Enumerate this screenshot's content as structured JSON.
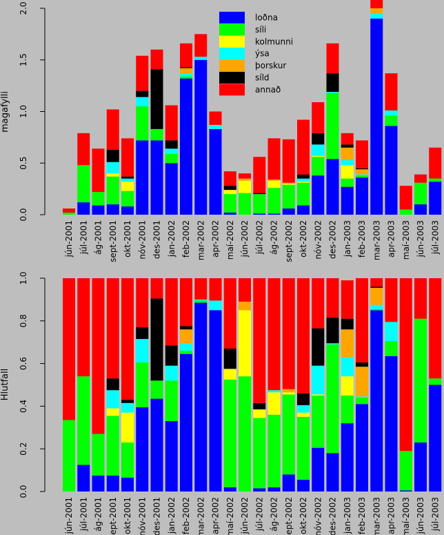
{
  "chart_data": [
    {
      "type": "bar",
      "stacked": true,
      "ylabel": "magafylli",
      "xlabel": "",
      "ylim": [
        0,
        2.0
      ],
      "yticks": [
        0.0,
        0.5,
        1.0,
        1.5,
        2.0
      ],
      "ytick_labels": [
        "0.0",
        "0.5",
        "1.0",
        "1.5",
        "2.0"
      ],
      "legend_position": "top-center",
      "categories": [
        "jún-2001",
        "júl-2001",
        "ág-2001",
        "sept-2001",
        "okt-2001",
        "nóv-2001",
        "des-2001",
        "jan-2002",
        "feb-2002",
        "mar-2002",
        "apr-2002",
        "maí-2002",
        "jún-2002",
        "júl-2002",
        "ág-2002",
        "sept-2002",
        "okt-2002",
        "nóv-2002",
        "des-2002",
        "jan-2003",
        "feb-2003",
        "mar-2003",
        "apr-2003",
        "maí-2003",
        "jún-2003",
        "júl-2003"
      ],
      "series": [
        {
          "name": "loðna",
          "color": "#0000ff",
          "values": [
            0,
            0.12,
            0.09,
            0.1,
            0.08,
            0.72,
            0.72,
            0.5,
            1.32,
            1.5,
            0.83,
            0.02,
            0,
            0.01,
            0.01,
            0.06,
            0.09,
            0.38,
            0.54,
            0.27,
            0.36,
            1.9,
            0.86,
            0,
            0.1,
            0.32
          ]
        },
        {
          "name": "síli",
          "color": "#00ff00",
          "values": [
            0.02,
            0.36,
            0.13,
            0.27,
            0.15,
            0.33,
            0.11,
            0.09,
            0.02,
            0,
            0,
            0.18,
            0.21,
            0.19,
            0.25,
            0.23,
            0.22,
            0.18,
            0.64,
            0.08,
            0.02,
            0,
            0.1,
            0.05,
            0.21,
            0.03
          ]
        },
        {
          "name": "kolmunni",
          "color": "#ffff00",
          "values": [
            0,
            0,
            0,
            0.03,
            0.09,
            0,
            0,
            0,
            0,
            0,
            0,
            0.04,
            0.12,
            0,
            0.07,
            0.01,
            0.01,
            0.01,
            0,
            0.13,
            0,
            0,
            0,
            0,
            0,
            0
          ]
        },
        {
          "name": "ýsa",
          "color": "#00ffff",
          "values": [
            0,
            0,
            0,
            0.11,
            0.03,
            0.09,
            0,
            0.05,
            0.03,
            0.03,
            0.04,
            0,
            0,
            0,
            0,
            0,
            0.03,
            0.11,
            0.01,
            0.05,
            0.01,
            0.05,
            0.05,
            0,
            0,
            0
          ]
        },
        {
          "name": "þorskur",
          "color": "#ffa500",
          "values": [
            0,
            0,
            0,
            0,
            0,
            0,
            0,
            0,
            0.05,
            0,
            0,
            0,
            0.02,
            0,
            0.01,
            0.01,
            0,
            0,
            0,
            0.12,
            0.05,
            0.05,
            0,
            0,
            0,
            0
          ]
        },
        {
          "name": "síld",
          "color": "#000000",
          "values": [
            0,
            0,
            0,
            0.12,
            0.02,
            0.06,
            0.58,
            0.08,
            0.01,
            0,
            0,
            0.04,
            0,
            0.01,
            0,
            0,
            0.04,
            0.11,
            0.18,
            0.03,
            0.01,
            0,
            0,
            0,
            0,
            0
          ]
        },
        {
          "name": "annað",
          "color": "#ff0000",
          "values": [
            0.04,
            0.31,
            0.42,
            0.39,
            0.37,
            0.34,
            0.19,
            0.34,
            0.23,
            0.22,
            0.13,
            0.14,
            0.05,
            0.35,
            0.4,
            0.42,
            0.53,
            0.3,
            0.29,
            0.11,
            0.27,
            0.1,
            0.36,
            0.23,
            0.08,
            0.3
          ]
        }
      ]
    },
    {
      "type": "bar",
      "stacked": true,
      "ylabel": "Hlutfall",
      "xlabel": "",
      "ylim": [
        0,
        1.0
      ],
      "yticks": [
        0.0,
        0.2,
        0.4,
        0.6,
        0.8,
        1.0
      ],
      "ytick_labels": [
        "0.0",
        "0.2",
        "0.4",
        "0.6",
        "0.8",
        "1.0"
      ],
      "categories": [
        "jún-2001",
        "júl-2001",
        "ág-2001",
        "sept-2001",
        "okt-2001",
        "nóv-2001",
        "des-2001",
        "jan-2002",
        "feb-2002",
        "mar-2002",
        "apr-2002",
        "maí-2002",
        "jún-2002",
        "júl-2002",
        "ág-2002",
        "sept-2002",
        "okt-2002",
        "nóv-2002",
        "des-2002",
        "jan-2003",
        "feb-2003",
        "mar-2003",
        "apr-2003",
        "maí-2003",
        "jún-2003",
        "júl-2003"
      ],
      "series": [
        {
          "name": "loðna",
          "color": "#0000ff",
          "values": [
            0,
            0.125,
            0.075,
            0.075,
            0.065,
            0.395,
            0.435,
            0.33,
            0.645,
            0.885,
            0.85,
            0.02,
            0,
            0.015,
            0.02,
            0.08,
            0.055,
            0.205,
            0.18,
            0.32,
            0.41,
            0.85,
            0.635,
            0.005,
            0.23,
            0.5
          ]
        },
        {
          "name": "síli",
          "color": "#00ff00",
          "values": [
            0.335,
            0.415,
            0.195,
            0.28,
            0.165,
            0.21,
            0.085,
            0.19,
            0.015,
            0.01,
            0,
            0.505,
            0.54,
            0.33,
            0.34,
            0.375,
            0.295,
            0.245,
            0.51,
            0.13,
            0.03,
            0.005,
            0.07,
            0.185,
            0.58,
            0.03
          ]
        },
        {
          "name": "kolmunni",
          "color": "#ffff00",
          "values": [
            0,
            0,
            0,
            0.035,
            0.14,
            0,
            0,
            0,
            0,
            0,
            0,
            0.05,
            0.31,
            0.04,
            0.105,
            0.01,
            0.02,
            0.005,
            0,
            0.09,
            0,
            0,
            0,
            0,
            0,
            0
          ]
        },
        {
          "name": "ýsa",
          "color": "#00ffff",
          "values": [
            0,
            0,
            0,
            0.085,
            0.045,
            0.11,
            0,
            0.07,
            0.035,
            0.005,
            0.045,
            0,
            0,
            0,
            0.01,
            0,
            0.035,
            0.135,
            0.005,
            0.09,
            0.005,
            0.02,
            0.09,
            0,
            0,
            0
          ]
        },
        {
          "name": "þorskur",
          "color": "#ffa500",
          "values": [
            0,
            0,
            0,
            0,
            0,
            0,
            0,
            0,
            0.065,
            0,
            0,
            0,
            0.04,
            0,
            0,
            0.015,
            0,
            0,
            0,
            0.13,
            0.14,
            0.08,
            0,
            0,
            0,
            0
          ]
        },
        {
          "name": "síld",
          "color": "#000000",
          "values": [
            0,
            0,
            0,
            0.055,
            0.015,
            0.055,
            0.385,
            0.095,
            0.015,
            0,
            0,
            0.095,
            0,
            0.03,
            0,
            0,
            0.055,
            0.175,
            0.12,
            0.05,
            0.02,
            0.005,
            0,
            0,
            0,
            0
          ]
        },
        {
          "name": "annað",
          "color": "#ff0000",
          "values": [
            0.665,
            0.46,
            0.73,
            0.47,
            0.57,
            0.23,
            0.095,
            0.315,
            0.225,
            0.1,
            0.105,
            0.33,
            0.11,
            0.585,
            0.525,
            0.52,
            0.54,
            0.235,
            0.185,
            0.18,
            0.395,
            0.04,
            0.205,
            0.81,
            0.19,
            0.47
          ]
        }
      ]
    }
  ]
}
